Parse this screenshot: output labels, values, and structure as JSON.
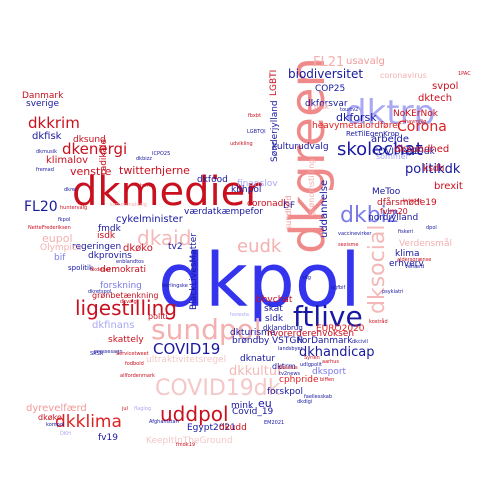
{
  "palette": {
    "red_dark": "#c8101e",
    "red": "#dd2222",
    "red_light": "#f09a9a",
    "blue_dark": "#1818a0",
    "blue": "#2b2be8",
    "blue_light": "#9a9af0",
    "navy": "#202070",
    "pink": "#f4b8b8",
    "lavender": "#c8c8f4"
  },
  "words": [
    {
      "text": "dkpol",
      "color": "#3434ee"
    },
    {
      "text": "dkmedier",
      "color": "#c8101e"
    },
    {
      "text": "dkgreen",
      "color": "#f08a8a"
    },
    {
      "text": "dktrp",
      "color": "#a8a8f4"
    },
    {
      "text": "ftlive",
      "color": "#1818a0"
    },
    {
      "text": "sundpol",
      "color": "#f4b0b0"
    },
    {
      "text": "ligestilling",
      "color": "#c8101e"
    },
    {
      "text": "dkbiz",
      "color": "#7a7ae8"
    },
    {
      "text": "dkaid",
      "color": "#f4b8b8"
    },
    {
      "text": "eudk",
      "color": "#f4b0b0"
    },
    {
      "text": "dksocial",
      "color": "#f4b8b8"
    },
    {
      "text": "skolechat",
      "color": "#1818a0"
    },
    {
      "text": "uddpol",
      "color": "#c8101e"
    },
    {
      "text": "dkklima",
      "color": "#dd2222"
    },
    {
      "text": "COVID19",
      "color": "#1818a0"
    },
    {
      "text": "COVID19dk",
      "color": "#f4c8c8"
    },
    {
      "text": "dkkrim",
      "color": "#c8101e"
    },
    {
      "text": "dkenergi",
      "color": "#c8101e"
    },
    {
      "text": "politikdk",
      "color": "#1818a0"
    },
    {
      "text": "Corona",
      "color": "#dd2222"
    },
    {
      "text": "FL20",
      "color": "#1818a0"
    },
    {
      "text": "FL21",
      "color": "#f4b0b0"
    },
    {
      "text": "biodiversitet",
      "color": "#1818a0"
    },
    {
      "text": "dkhandicap",
      "color": "#1818a0"
    },
    {
      "text": "dkkultur",
      "color": "#f4b8b8"
    },
    {
      "text": "dkforsk",
      "color": "#1818a0"
    },
    {
      "text": "Danmark",
      "color": "#c8101e"
    },
    {
      "text": "sverige",
      "color": "#1818a0"
    },
    {
      "text": "dkfisk",
      "color": "#1818a0"
    },
    {
      "text": "dksund",
      "color": "#c8101e"
    },
    {
      "text": "klimalov",
      "color": "#c8101e"
    },
    {
      "text": "venstre",
      "color": "#c8101e"
    },
    {
      "text": "twitterhjerne",
      "color": "#c8101e"
    },
    {
      "text": "dkfood",
      "color": "#1818a0"
    },
    {
      "text": "cykelminister",
      "color": "#1818a0"
    },
    {
      "text": "værdatkæmpefor",
      "color": "#1818a0"
    },
    {
      "text": "eupol",
      "color": "#f4b0b0"
    },
    {
      "text": "isdk",
      "color": "#c8101e"
    },
    {
      "text": "dkøko",
      "color": "#c8101e"
    },
    {
      "text": "regeringen",
      "color": "#1818a0"
    },
    {
      "text": "dkprovins",
      "color": "#1818a0"
    },
    {
      "text": "demokrati",
      "color": "#c8101e"
    },
    {
      "text": "forskning",
      "color": "#7a7ae8"
    },
    {
      "text": "grønbetænkning",
      "color": "#c8101e"
    },
    {
      "text": "dkfinans",
      "color": "#a8a8f4"
    },
    {
      "text": "skattely",
      "color": "#c8101e"
    },
    {
      "text": "Olympics",
      "color": "#f4b0b0"
    },
    {
      "text": "tv2",
      "color": "#1818a0"
    },
    {
      "text": "BlackLivesMatter",
      "color": "#1818a0"
    },
    {
      "text": "dkturisme",
      "color": "#1818a0"
    },
    {
      "text": "bhvchat",
      "color": "#c8101e"
    },
    {
      "text": "EURO2020",
      "color": "#dd2222"
    },
    {
      "text": "hvorerderenvoksen",
      "color": "#c8101e"
    },
    {
      "text": "brøndby",
      "color": "#1818a0"
    },
    {
      "text": "VSTGN",
      "color": "#1818a0"
    },
    {
      "text": "ForDanmark",
      "color": "#1818a0"
    },
    {
      "text": "dknatur",
      "color": "#1818a0"
    },
    {
      "text": "dktrm",
      "color": "#1818a0"
    },
    {
      "text": "dksport",
      "color": "#7a7ae8"
    },
    {
      "text": "cphpride",
      "color": "#dd2222"
    },
    {
      "text": "forskpol",
      "color": "#1818a0"
    },
    {
      "text": "mink",
      "color": "#1818a0"
    },
    {
      "text": "eu",
      "color": "#1818a0"
    },
    {
      "text": "Covid_19",
      "color": "#1818a0"
    },
    {
      "text": "Egypt2021",
      "color": "#1818a0"
    },
    {
      "text": "dkudd",
      "color": "#c8101e"
    },
    {
      "text": "dyrevelfærd",
      "color": "#f09a9a"
    },
    {
      "text": "dkøko",
      "color": "#c8101e"
    },
    {
      "text": "fv19",
      "color": "#1818a0"
    },
    {
      "text": "uddannelse",
      "color": "#1818a0"
    },
    {
      "text": "Sønderjylland",
      "color": "#1818a0"
    },
    {
      "text": "LGBTI",
      "color": "#c8101e"
    },
    {
      "text": "COP25",
      "color": "#1818a0"
    },
    {
      "text": "dkforsvar",
      "color": "#1818a0"
    },
    {
      "text": "heavymetalordfører",
      "color": "#dd2222"
    },
    {
      "text": "NoKErNok",
      "color": "#c8101e"
    },
    {
      "text": "RetTilEgenKrop",
      "color": "#1818a0"
    },
    {
      "text": "svpol",
      "color": "#c8101e"
    },
    {
      "text": "dktech",
      "color": "#c8101e"
    },
    {
      "text": "usavalg",
      "color": "#f09a9a"
    },
    {
      "text": "arbejde",
      "color": "#1818a0"
    },
    {
      "text": "COVID2019dk",
      "color": "#1818a0"
    },
    {
      "text": "dksundhed",
      "color": "#c8101e"
    },
    {
      "text": "sommer",
      "color": "#a8a8f4"
    },
    {
      "text": "brexit",
      "color": "#c8101e"
    },
    {
      "text": "MeToo",
      "color": "#1818a0"
    },
    {
      "text": "ksdh",
      "color": "#c8101e"
    },
    {
      "text": "dfårsmøde19",
      "color": "#c8101e"
    },
    {
      "text": "nordjylland",
      "color": "#1818a0"
    },
    {
      "text": "klima",
      "color": "#1818a0"
    },
    {
      "text": "erhverv",
      "color": "#1818a0"
    },
    {
      "text": "Verdensmål",
      "color": "#f4b0b0"
    },
    {
      "text": "kulturudvalg",
      "color": "#1818a0"
    },
    {
      "text": "coronadk",
      "color": "#c8101e"
    },
    {
      "text": "finanslov",
      "color": "#a8a8f4"
    },
    {
      "text": "kbhpol",
      "color": "#1818a0"
    },
    {
      "text": "DF",
      "color": "#1818a0"
    },
    {
      "text": "fmdk",
      "color": "#1818a0"
    },
    {
      "text": "sldk",
      "color": "#1818a0"
    },
    {
      "text": "dklandbrug",
      "color": "#1818a0"
    },
    {
      "text": "skat",
      "color": "#1818a0"
    },
    {
      "text": "politi",
      "color": "#c8101e"
    },
    {
      "text": "ftlive",
      "color": "#1818a0"
    },
    {
      "text": "grønomstilling",
      "color": "#f4b0b0"
    },
    {
      "text": "sundhed",
      "color": "#f09a9a"
    },
    {
      "text": "radikale",
      "color": "#c8101e"
    },
    {
      "text": "bif",
      "color": "#7a7ae8"
    },
    {
      "text": "spolitik",
      "color": "#1818a0"
    },
    {
      "text": "frivillig",
      "color": "#1818a0"
    },
    {
      "text": "fv19",
      "color": "#1818a0"
    },
    {
      "text": "vaccinevirker",
      "color": "#1818a0"
    },
    {
      "text": "fvlm20",
      "color": "#c8101e"
    },
    {
      "text": "dkmusik",
      "color": "#1818a0"
    },
    {
      "text": "dkbizz",
      "color": "#1818a0"
    },
    {
      "text": "terror",
      "color": "#c8101e"
    },
    {
      "text": "kommunalvalg",
      "color": "#f4b0b0"
    },
    {
      "text": "coronavirus",
      "color": "#f4b0b0"
    },
    {
      "text": "dkdebat",
      "color": "#c8101e"
    },
    {
      "text": "SRSR",
      "color": "#1818a0"
    },
    {
      "text": "pressesagn",
      "color": "#1818a0"
    },
    {
      "text": "Servicetweet",
      "color": "#c8101e"
    },
    {
      "text": "fodbold",
      "color": "#c8101e"
    },
    {
      "text": "allfordenmark",
      "color": "#c8101e"
    },
    {
      "text": "fremad",
      "color": "#1818a0"
    },
    {
      "text": "kompol",
      "color": "#1818a0"
    },
    {
      "text": "DKH",
      "color": "#a8a8f4"
    },
    {
      "text": "Afghanistan",
      "color": "#1818a0"
    },
    {
      "text": "fmdk19",
      "color": "#c8101e"
    },
    {
      "text": "EM2021",
      "color": "#1818a0"
    },
    {
      "text": "dkdigi",
      "color": "#1818a0"
    },
    {
      "text": "biffen",
      "color": "#c8101e"
    },
    {
      "text": "Belarus",
      "color": "#c8101e"
    },
    {
      "text": "tv2news",
      "color": "#1818a0"
    },
    {
      "text": "psykiatri",
      "color": "#1818a0"
    },
    {
      "text": "kostråd",
      "color": "#c8101e"
    },
    {
      "text": "velfærd",
      "color": "#1818a0"
    },
    {
      "text": "aldersgrænse",
      "color": "#c8101e"
    },
    {
      "text": "dkcivil",
      "color": "#1818a0"
    },
    {
      "text": "sexisme",
      "color": "#c8101e"
    },
    {
      "text": "dpol",
      "color": "#1818a0"
    },
    {
      "text": "1PAC",
      "color": "#c8101e"
    },
    {
      "text": "KeepItInTheGround",
      "color": "#f4c8c8"
    },
    {
      "text": "ultraktivitetsregel",
      "color": "#f4c8c8"
    },
    {
      "text": "enblandtos",
      "color": "#1818a0"
    },
    {
      "text": "dkvalg",
      "color": "#c8101e"
    },
    {
      "text": "NetteFrederiksen",
      "color": "#c8101e"
    },
    {
      "text": "flaglog",
      "color": "#a8a8f4"
    },
    {
      "text": "jul",
      "color": "#c8101e"
    },
    {
      "text": "ICPO25",
      "color": "#1818a0"
    },
    {
      "text": "udvikling",
      "color": "#c8101e"
    },
    {
      "text": "LGBTQI",
      "color": "#1818a0"
    },
    {
      "text": "fbxbt",
      "color": "#c8101e"
    },
    {
      "text": "pldk",
      "color": "#f09a9a"
    },
    {
      "text": "havmiljø",
      "color": "#c8101e"
    },
    {
      "text": "tourtv2",
      "color": "#1818a0"
    },
    {
      "text": "dkrel",
      "color": "#1818a0"
    },
    {
      "text": "kvinder",
      "color": "#c8101e"
    },
    {
      "text": "fiskeri",
      "color": "#1818a0"
    },
    {
      "text": "horesta",
      "color": "#a8a8f4"
    },
    {
      "text": "sdg",
      "color": "#1818a0"
    },
    {
      "text": "agfbif",
      "color": "#1818a0"
    },
    {
      "text": "landsbyer",
      "color": "#1818a0"
    },
    {
      "text": "fkpol",
      "color": "#1818a0"
    },
    {
      "text": "berlingske",
      "color": "#1818a0"
    },
    {
      "text": "dkretspol",
      "color": "#1818a0"
    },
    {
      "text": "eudk",
      "color": "#c8101e"
    },
    {
      "text": "huntervalg",
      "color": "#c8101e"
    },
    {
      "text": "faellesskab",
      "color": "#1818a0"
    },
    {
      "text": "Syrien",
      "color": "#c8101e"
    },
    {
      "text": "udlgpolit",
      "color": "#1818a0"
    },
    {
      "text": "aarhus",
      "color": "#c8101e"
    }
  ]
}
